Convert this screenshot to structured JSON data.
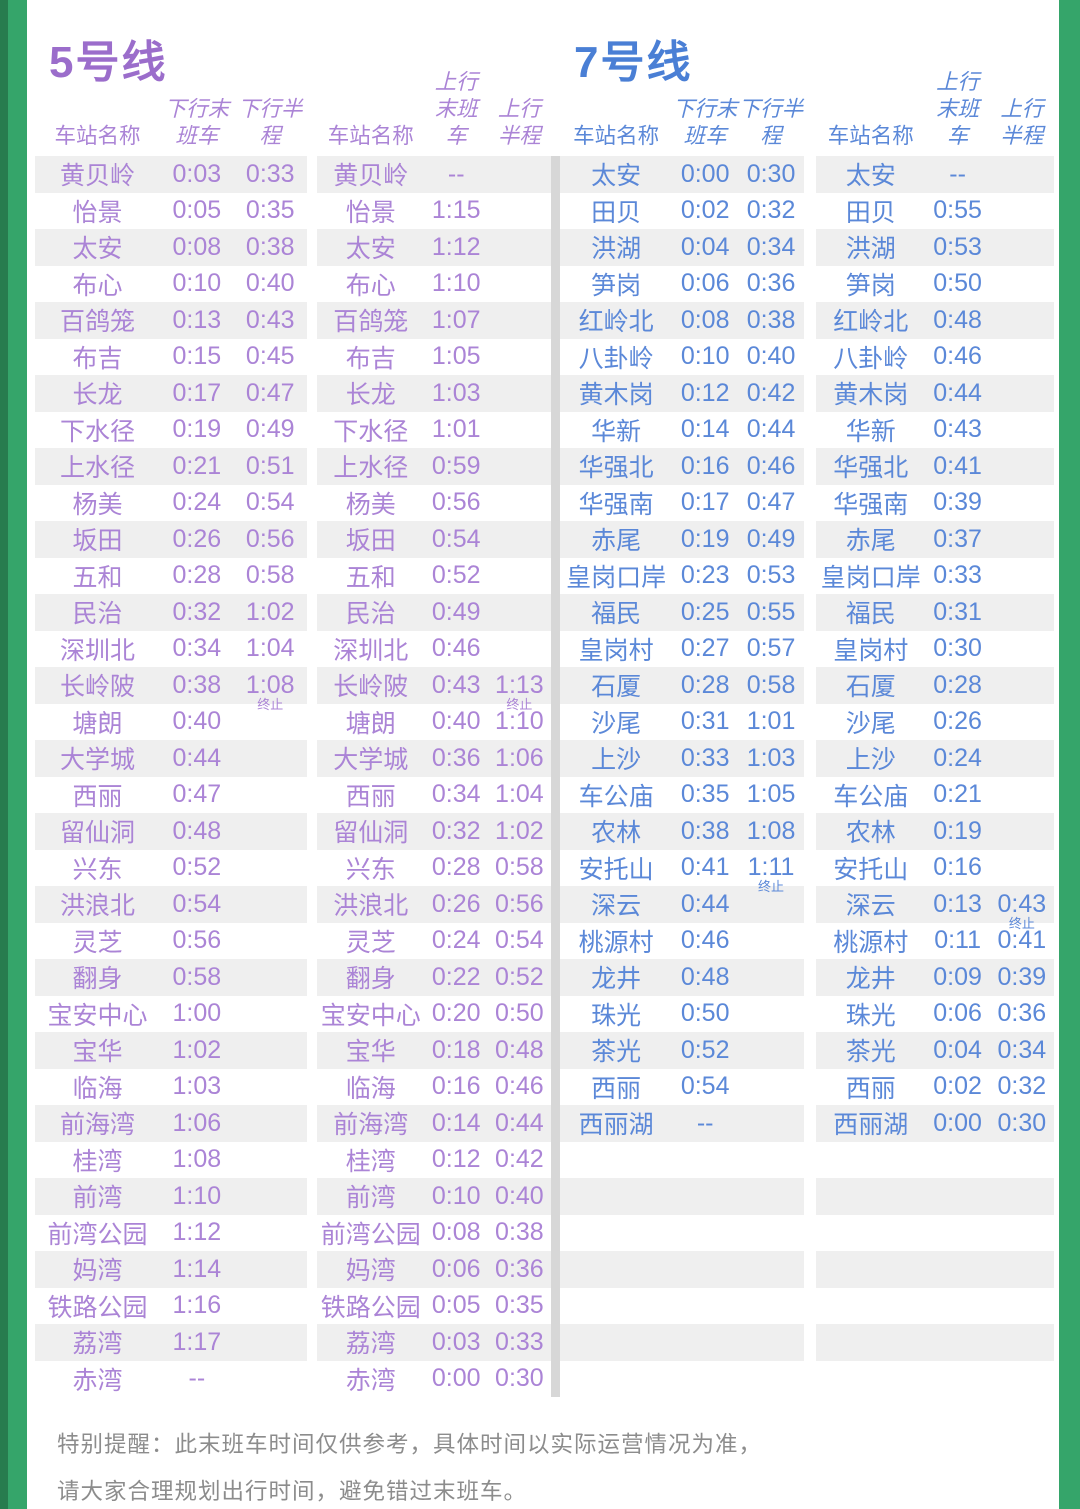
{
  "colors": {
    "line5_title": "#9b6dcb",
    "line5_text": "#ab84d6",
    "line7_title": "#4a7fd5",
    "line7_text": "#5b88d8",
    "stripe": "#efefef",
    "divider": "#d7d7d7",
    "green": "#35a56a",
    "green_dark": "#277c4e",
    "note_gray": "#8c8c8c"
  },
  "headers": {
    "station": "车站名称",
    "down": "下行",
    "up": "上行",
    "last": "末班车",
    "half": "半程"
  },
  "note": {
    "line1": "特别提醒：此末班车时间仅供参考，具体时间以实际运营情况为准，",
    "line2": "请大家合理规划出行时间，避免错过末班车。"
  },
  "lines": [
    {
      "title": "5号线",
      "down": {
        "rows": [
          {
            "station": "黄贝岭",
            "last": "0:03",
            "half": "0:33"
          },
          {
            "station": "怡景",
            "last": "0:05",
            "half": "0:35"
          },
          {
            "station": "太安",
            "last": "0:08",
            "half": "0:38"
          },
          {
            "station": "布心",
            "last": "0:10",
            "half": "0:40"
          },
          {
            "station": "百鸽笼",
            "last": "0:13",
            "half": "0:43"
          },
          {
            "station": "布吉",
            "last": "0:15",
            "half": "0:45"
          },
          {
            "station": "长龙",
            "last": "0:17",
            "half": "0:47"
          },
          {
            "station": "下水径",
            "last": "0:19",
            "half": "0:49"
          },
          {
            "station": "上水径",
            "last": "0:21",
            "half": "0:51"
          },
          {
            "station": "杨美",
            "last": "0:24",
            "half": "0:54"
          },
          {
            "station": "坂田",
            "last": "0:26",
            "half": "0:56"
          },
          {
            "station": "五和",
            "last": "0:28",
            "half": "0:58"
          },
          {
            "station": "民治",
            "last": "0:32",
            "half": "1:02"
          },
          {
            "station": "深圳北",
            "last": "0:34",
            "half": "1:04"
          },
          {
            "station": "长岭陂",
            "last": "0:38",
            "half": "1:08",
            "half_note": "终止"
          },
          {
            "station": "塘朗",
            "last": "0:40",
            "half": ""
          },
          {
            "station": "大学城",
            "last": "0:44",
            "half": ""
          },
          {
            "station": "西丽",
            "last": "0:47",
            "half": ""
          },
          {
            "station": "留仙洞",
            "last": "0:48",
            "half": ""
          },
          {
            "station": "兴东",
            "last": "0:52",
            "half": ""
          },
          {
            "station": "洪浪北",
            "last": "0:54",
            "half": ""
          },
          {
            "station": "灵芝",
            "last": "0:56",
            "half": ""
          },
          {
            "station": "翻身",
            "last": "0:58",
            "half": ""
          },
          {
            "station": "宝安中心",
            "last": "1:00",
            "half": ""
          },
          {
            "station": "宝华",
            "last": "1:02",
            "half": ""
          },
          {
            "station": "临海",
            "last": "1:03",
            "half": ""
          },
          {
            "station": "前海湾",
            "last": "1:06",
            "half": ""
          },
          {
            "station": "桂湾",
            "last": "1:08",
            "half": ""
          },
          {
            "station": "前湾",
            "last": "1:10",
            "half": ""
          },
          {
            "station": "前湾公园",
            "last": "1:12",
            "half": ""
          },
          {
            "station": "妈湾",
            "last": "1:14",
            "half": ""
          },
          {
            "station": "铁路公园",
            "last": "1:16",
            "half": ""
          },
          {
            "station": "荔湾",
            "last": "1:17",
            "half": ""
          },
          {
            "station": "赤湾",
            "last": "--",
            "half": ""
          }
        ]
      },
      "up": {
        "rows": [
          {
            "station": "黄贝岭",
            "last": "--",
            "half": ""
          },
          {
            "station": "怡景",
            "last": "1:15",
            "half": ""
          },
          {
            "station": "太安",
            "last": "1:12",
            "half": ""
          },
          {
            "station": "布心",
            "last": "1:10",
            "half": ""
          },
          {
            "station": "百鸽笼",
            "last": "1:07",
            "half": ""
          },
          {
            "station": "布吉",
            "last": "1:05",
            "half": ""
          },
          {
            "station": "长龙",
            "last": "1:03",
            "half": ""
          },
          {
            "station": "下水径",
            "last": "1:01",
            "half": ""
          },
          {
            "station": "上水径",
            "last": "0:59",
            "half": ""
          },
          {
            "station": "杨美",
            "last": "0:56",
            "half": ""
          },
          {
            "station": "坂田",
            "last": "0:54",
            "half": ""
          },
          {
            "station": "五和",
            "last": "0:52",
            "half": ""
          },
          {
            "station": "民治",
            "last": "0:49",
            "half": ""
          },
          {
            "station": "深圳北",
            "last": "0:46",
            "half": ""
          },
          {
            "station": "长岭陂",
            "last": "0:43",
            "half": "1:13",
            "half_note": "终止"
          },
          {
            "station": "塘朗",
            "last": "0:40",
            "half": "1:10"
          },
          {
            "station": "大学城",
            "last": "0:36",
            "half": "1:06"
          },
          {
            "station": "西丽",
            "last": "0:34",
            "half": "1:04"
          },
          {
            "station": "留仙洞",
            "last": "0:32",
            "half": "1:02"
          },
          {
            "station": "兴东",
            "last": "0:28",
            "half": "0:58"
          },
          {
            "station": "洪浪北",
            "last": "0:26",
            "half": "0:56"
          },
          {
            "station": "灵芝",
            "last": "0:24",
            "half": "0:54"
          },
          {
            "station": "翻身",
            "last": "0:22",
            "half": "0:52"
          },
          {
            "station": "宝安中心",
            "last": "0:20",
            "half": "0:50"
          },
          {
            "station": "宝华",
            "last": "0:18",
            "half": "0:48"
          },
          {
            "station": "临海",
            "last": "0:16",
            "half": "0:46"
          },
          {
            "station": "前海湾",
            "last": "0:14",
            "half": "0:44"
          },
          {
            "station": "桂湾",
            "last": "0:12",
            "half": "0:42"
          },
          {
            "station": "前湾",
            "last": "0:10",
            "half": "0:40"
          },
          {
            "station": "前湾公园",
            "last": "0:08",
            "half": "0:38"
          },
          {
            "station": "妈湾",
            "last": "0:06",
            "half": "0:36"
          },
          {
            "station": "铁路公园",
            "last": "0:05",
            "half": "0:35"
          },
          {
            "station": "荔湾",
            "last": "0:03",
            "half": "0:33"
          },
          {
            "station": "赤湾",
            "last": "0:00",
            "half": "0:30"
          }
        ]
      }
    },
    {
      "title": "7号线",
      "down": {
        "rows": [
          {
            "station": "太安",
            "last": "0:00",
            "half": "0:30"
          },
          {
            "station": "田贝",
            "last": "0:02",
            "half": "0:32"
          },
          {
            "station": "洪湖",
            "last": "0:04",
            "half": "0:34"
          },
          {
            "station": "笋岗",
            "last": "0:06",
            "half": "0:36"
          },
          {
            "station": "红岭北",
            "last": "0:08",
            "half": "0:38"
          },
          {
            "station": "八卦岭",
            "last": "0:10",
            "half": "0:40"
          },
          {
            "station": "黄木岗",
            "last": "0:12",
            "half": "0:42"
          },
          {
            "station": "华新",
            "last": "0:14",
            "half": "0:44"
          },
          {
            "station": "华强北",
            "last": "0:16",
            "half": "0:46"
          },
          {
            "station": "华强南",
            "last": "0:17",
            "half": "0:47"
          },
          {
            "station": "赤尾",
            "last": "0:19",
            "half": "0:49"
          },
          {
            "station": "皇岗口岸",
            "last": "0:23",
            "half": "0:53"
          },
          {
            "station": "福民",
            "last": "0:25",
            "half": "0:55"
          },
          {
            "station": "皇岗村",
            "last": "0:27",
            "half": "0:57"
          },
          {
            "station": "石厦",
            "last": "0:28",
            "half": "0:58"
          },
          {
            "station": "沙尾",
            "last": "0:31",
            "half": "1:01"
          },
          {
            "station": "上沙",
            "last": "0:33",
            "half": "1:03"
          },
          {
            "station": "车公庙",
            "last": "0:35",
            "half": "1:05"
          },
          {
            "station": "农林",
            "last": "0:38",
            "half": "1:08"
          },
          {
            "station": "安托山",
            "last": "0:41",
            "half": "1:11",
            "half_note": "终止"
          },
          {
            "station": "深云",
            "last": "0:44",
            "half": ""
          },
          {
            "station": "桃源村",
            "last": "0:46",
            "half": ""
          },
          {
            "station": "龙井",
            "last": "0:48",
            "half": ""
          },
          {
            "station": "珠光",
            "last": "0:50",
            "half": ""
          },
          {
            "station": "茶光",
            "last": "0:52",
            "half": ""
          },
          {
            "station": "西丽",
            "last": "0:54",
            "half": ""
          },
          {
            "station": "西丽湖",
            "last": "--",
            "half": ""
          }
        ]
      },
      "up": {
        "rows": [
          {
            "station": "太安",
            "last": "--",
            "half": ""
          },
          {
            "station": "田贝",
            "last": "0:55",
            "half": ""
          },
          {
            "station": "洪湖",
            "last": "0:53",
            "half": ""
          },
          {
            "station": "笋岗",
            "last": "0:50",
            "half": ""
          },
          {
            "station": "红岭北",
            "last": "0:48",
            "half": ""
          },
          {
            "station": "八卦岭",
            "last": "0:46",
            "half": ""
          },
          {
            "station": "黄木岗",
            "last": "0:44",
            "half": ""
          },
          {
            "station": "华新",
            "last": "0:43",
            "half": ""
          },
          {
            "station": "华强北",
            "last": "0:41",
            "half": ""
          },
          {
            "station": "华强南",
            "last": "0:39",
            "half": ""
          },
          {
            "station": "赤尾",
            "last": "0:37",
            "half": ""
          },
          {
            "station": "皇岗口岸",
            "last": "0:33",
            "half": ""
          },
          {
            "station": "福民",
            "last": "0:31",
            "half": ""
          },
          {
            "station": "皇岗村",
            "last": "0:30",
            "half": ""
          },
          {
            "station": "石厦",
            "last": "0:28",
            "half": ""
          },
          {
            "station": "沙尾",
            "last": "0:26",
            "half": ""
          },
          {
            "station": "上沙",
            "last": "0:24",
            "half": ""
          },
          {
            "station": "车公庙",
            "last": "0:21",
            "half": ""
          },
          {
            "station": "农林",
            "last": "0:19",
            "half": ""
          },
          {
            "station": "安托山",
            "last": "0:16",
            "half": ""
          },
          {
            "station": "深云",
            "last": "0:13",
            "half": "0:43",
            "half_note": "终止"
          },
          {
            "station": "桃源村",
            "last": "0:11",
            "half": "0:41"
          },
          {
            "station": "龙井",
            "last": "0:09",
            "half": "0:39"
          },
          {
            "station": "珠光",
            "last": "0:06",
            "half": "0:36"
          },
          {
            "station": "茶光",
            "last": "0:04",
            "half": "0:34"
          },
          {
            "station": "西丽",
            "last": "0:02",
            "half": "0:32"
          },
          {
            "station": "西丽湖",
            "last": "0:00",
            "half": "0:30"
          }
        ]
      }
    }
  ]
}
